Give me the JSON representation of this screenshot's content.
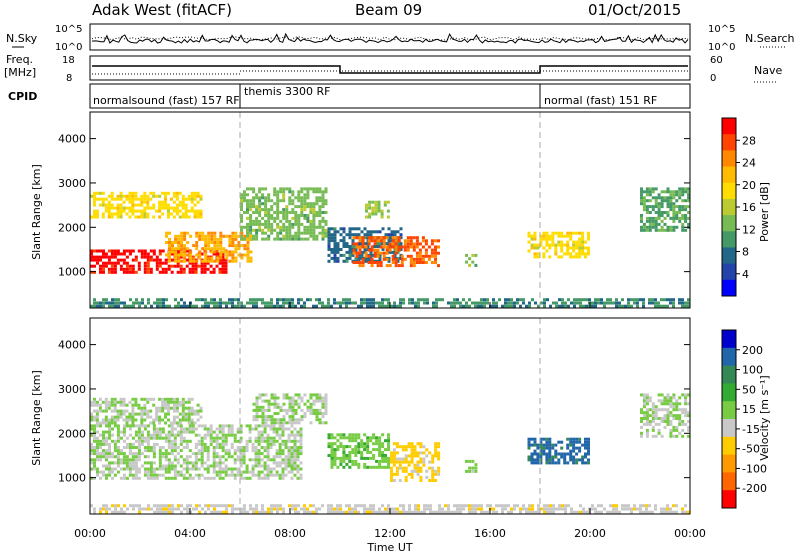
{
  "header": {
    "station": "Adak West (fitACF)",
    "beam": "Beam 09",
    "date": "01/Oct/2015"
  },
  "nsky_panel": {
    "label": "N.Sky",
    "right_label": "N.Search",
    "left_ticks": [
      "10^5",
      "10^0"
    ],
    "right_ticks": [
      "10^5",
      "10^0"
    ]
  },
  "freq_panel": {
    "label_line1": "Freq.",
    "label_line2": "[MHz]",
    "right_label": "Nave",
    "left_ticks": [
      "18",
      "8"
    ],
    "right_ticks": [
      "60",
      "0"
    ]
  },
  "cpid_panel": {
    "label": "CPID",
    "modes": [
      {
        "name": "normalsound (fast) 157 RF",
        "start": 0,
        "end": 6
      },
      {
        "name": "themis 3300 RF",
        "start": 6,
        "end": 18
      },
      {
        "name": "normal (fast) 151 RF",
        "start": 18,
        "end": 24
      }
    ]
  },
  "x_axis": {
    "label": "Time UT",
    "ticks": [
      "00:00",
      "04:00",
      "08:00",
      "12:00",
      "16:00",
      "20:00",
      "00:00"
    ]
  },
  "power_panel": {
    "ylabel": "Slant Range [km]",
    "yticks": [
      "1000",
      "2000",
      "3000",
      "4000"
    ],
    "colorbar_label": "Power [dB]",
    "colorbar_ticks": [
      "28",
      "24",
      "20",
      "16",
      "12",
      "8",
      "4"
    ],
    "colorbar_colors": [
      "#ff0000",
      "#ff4400",
      "#ff8800",
      "#ffbb00",
      "#ffdd00",
      "#bbcc33",
      "#77bb55",
      "#449966",
      "#226688",
      "#2244aa",
      "#0000ff"
    ]
  },
  "velocity_panel": {
    "ylabel": "Slant Range [km]",
    "yticks": [
      "1000",
      "2000",
      "3000",
      "4000"
    ],
    "colorbar_label": "Velocity [m s⁻¹]",
    "colorbar_ticks": [
      "200",
      "100",
      "50",
      "15",
      "-15",
      "-50",
      "-100",
      "-200"
    ],
    "colorbar_colors": [
      "#0000cc",
      "#2266aa",
      "#338855",
      "#33aa33",
      "#77cc44",
      "#c8c8c8",
      "#ffcc00",
      "#ff9900",
      "#ff6600",
      "#ff0000"
    ]
  },
  "chart_data": [
    {
      "type": "heatmap",
      "title": "Power [dB]",
      "xlabel": "Time UT",
      "ylabel": "Slant Range [km]",
      "xlim": [
        0,
        24
      ],
      "ylim": [
        180,
        4600
      ],
      "colorbar_range": [
        0,
        30
      ],
      "regions": [
        {
          "t0": 0.0,
          "t1": 5.5,
          "r0": 950,
          "r1": 1500,
          "value": 30
        },
        {
          "t0": 3.0,
          "t1": 6.5,
          "r0": 1200,
          "r1": 1900,
          "value": 22
        },
        {
          "t0": 6.0,
          "t1": 9.5,
          "r0": 1700,
          "r1": 2900,
          "value": 12
        },
        {
          "t0": 0.0,
          "t1": 4.5,
          "r0": 2200,
          "r1": 2800,
          "value": 18
        },
        {
          "t0": 9.5,
          "t1": 12.5,
          "r0": 1200,
          "r1": 2000,
          "value": 6
        },
        {
          "t0": 10.5,
          "t1": 14.0,
          "r0": 1100,
          "r1": 1800,
          "value": 26
        },
        {
          "t0": 11.0,
          "t1": 12.0,
          "r0": 2200,
          "r1": 2600,
          "value": 14
        },
        {
          "t0": 15.0,
          "t1": 15.5,
          "r0": 1100,
          "r1": 1400,
          "value": 12
        },
        {
          "t0": 17.5,
          "t1": 20.0,
          "r0": 1300,
          "r1": 1900,
          "value": 18
        },
        {
          "t0": 22.0,
          "t1": 24.0,
          "r0": 1900,
          "r1": 2900,
          "value": 10
        },
        {
          "t0": 0.0,
          "t1": 24.0,
          "r0": 180,
          "r1": 400,
          "value": 8
        }
      ]
    },
    {
      "type": "heatmap",
      "title": "Velocity [m s⁻¹]",
      "xlabel": "Time UT",
      "ylabel": "Slant Range [km]",
      "xlim": [
        0,
        24
      ],
      "ylim": [
        180,
        4600
      ],
      "colorbar_range": [
        -200,
        200
      ],
      "regions": [
        {
          "t0": 0.0,
          "t1": 8.5,
          "r0": 950,
          "r1": 2200,
          "value": 0
        },
        {
          "t0": 0.0,
          "t1": 4.5,
          "r0": 2200,
          "r1": 2800,
          "value": 0
        },
        {
          "t0": 6.5,
          "t1": 9.5,
          "r0": 2200,
          "r1": 2900,
          "value": 0
        },
        {
          "t0": 9.5,
          "t1": 12.0,
          "r0": 1200,
          "r1": 2000,
          "value": 30
        },
        {
          "t0": 12.0,
          "t1": 14.0,
          "r0": 900,
          "r1": 1800,
          "value": -60
        },
        {
          "t0": 15.0,
          "t1": 15.5,
          "r0": 1100,
          "r1": 1400,
          "value": 20
        },
        {
          "t0": 17.5,
          "t1": 20.0,
          "r0": 1300,
          "r1": 1900,
          "value": 150
        },
        {
          "t0": 22.0,
          "t1": 24.0,
          "r0": 1900,
          "r1": 2900,
          "value": 0
        },
        {
          "t0": 0.0,
          "t1": 24.0,
          "r0": 180,
          "r1": 400,
          "value": -30
        }
      ]
    }
  ]
}
